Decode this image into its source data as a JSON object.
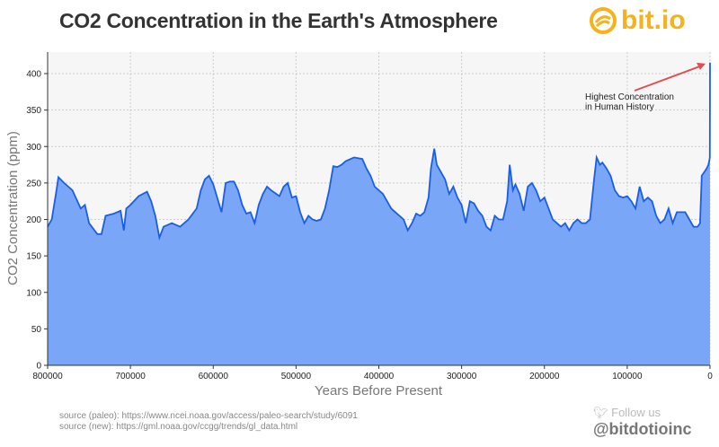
{
  "title": "CO2 Concentration in the Earth's Atmosphere",
  "logo": {
    "text": "bit.io",
    "color": "#f5b21b"
  },
  "footer": {
    "source_paleo": "source (paleo): https://www.ncei.noaa.gov/access/paleo-search/study/6091",
    "source_new": "source (new): https://gml.noaa.gov/ccgg/trends/gl_data.html",
    "follow_label": "Follow us",
    "follow_icon": "twitter-bird-icon",
    "handle": "@bitdotioinc"
  },
  "chart_data": {
    "type": "area",
    "title": "CO2 Concentration in the Earth's Atmosphere",
    "xlabel": "Years Before Present",
    "ylabel": "CO2 Concentration (ppm)",
    "xlim": [
      800000,
      0
    ],
    "ylim": [
      0,
      420
    ],
    "x_reversed": true,
    "grid": true,
    "xticks": [
      "800000",
      "700000",
      "600000",
      "500000",
      "400000",
      "300000",
      "200000",
      "100000",
      "0"
    ],
    "yticks": [
      "0",
      "50",
      "100",
      "150",
      "200",
      "250",
      "300",
      "350",
      "400"
    ],
    "colors": {
      "line": "#1a5ee8",
      "fill": "#7aa6f7",
      "background": "#f6f6f6",
      "arrow": "#e05050"
    },
    "annotation": {
      "text_line1": "Highest Concentration",
      "text_line2": "in Human History",
      "target": [
        0,
        415
      ]
    },
    "x": [
      800000,
      795000,
      790000,
      787000,
      780000,
      770000,
      760000,
      755000,
      750000,
      740000,
      735000,
      730000,
      720000,
      712000,
      708000,
      705000,
      700000,
      690000,
      680000,
      675000,
      670000,
      665000,
      660000,
      650000,
      640000,
      630000,
      620000,
      615000,
      610000,
      605000,
      600000,
      590000,
      585000,
      580000,
      575000,
      570000,
      565000,
      560000,
      555000,
      550000,
      545000,
      540000,
      535000,
      530000,
      520000,
      515000,
      510000,
      505000,
      500000,
      495000,
      490000,
      485000,
      480000,
      475000,
      470000,
      465000,
      460000,
      455000,
      450000,
      445000,
      440000,
      430000,
      420000,
      415000,
      410000,
      405000,
      400000,
      395000,
      390000,
      385000,
      380000,
      370000,
      365000,
      360000,
      355000,
      350000,
      345000,
      340000,
      337000,
      333000,
      330000,
      325000,
      320000,
      315000,
      310000,
      305000,
      300000,
      295000,
      290000,
      285000,
      280000,
      275000,
      270000,
      265000,
      260000,
      255000,
      250000,
      245000,
      242000,
      238000,
      235000,
      230000,
      225000,
      220000,
      215000,
      210000,
      205000,
      200000,
      195000,
      190000,
      185000,
      180000,
      175000,
      170000,
      165000,
      160000,
      155000,
      150000,
      145000,
      140000,
      137000,
      133000,
      130000,
      125000,
      120000,
      115000,
      110000,
      105000,
      100000,
      95000,
      90000,
      85000,
      80000,
      75000,
      70000,
      65000,
      60000,
      55000,
      50000,
      45000,
      40000,
      35000,
      30000,
      25000,
      20000,
      15000,
      12000,
      10000,
      7000,
      4000,
      2000,
      1000,
      200,
      0
    ],
    "y": [
      190,
      200,
      235,
      258,
      250,
      240,
      215,
      220,
      195,
      180,
      180,
      205,
      208,
      212,
      185,
      215,
      220,
      232,
      238,
      225,
      205,
      175,
      190,
      195,
      190,
      200,
      215,
      240,
      255,
      260,
      248,
      210,
      250,
      252,
      252,
      240,
      220,
      208,
      210,
      195,
      220,
      235,
      245,
      240,
      232,
      245,
      250,
      230,
      232,
      210,
      195,
      205,
      200,
      198,
      200,
      215,
      240,
      273,
      272,
      275,
      280,
      285,
      283,
      270,
      260,
      245,
      240,
      235,
      225,
      215,
      210,
      200,
      185,
      195,
      208,
      205,
      210,
      230,
      270,
      297,
      275,
      265,
      255,
      235,
      245,
      230,
      220,
      195,
      225,
      222,
      212,
      205,
      190,
      185,
      205,
      200,
      200,
      225,
      275,
      240,
      248,
      235,
      212,
      245,
      250,
      240,
      225,
      230,
      215,
      200,
      195,
      190,
      195,
      185,
      195,
      200,
      195,
      195,
      200,
      255,
      285,
      275,
      278,
      270,
      260,
      240,
      232,
      230,
      232,
      225,
      215,
      245,
      225,
      230,
      225,
      205,
      195,
      200,
      215,
      195,
      210,
      210,
      210,
      200,
      190,
      190,
      195,
      260,
      265,
      270,
      275,
      280,
      285,
      415
    ]
  }
}
